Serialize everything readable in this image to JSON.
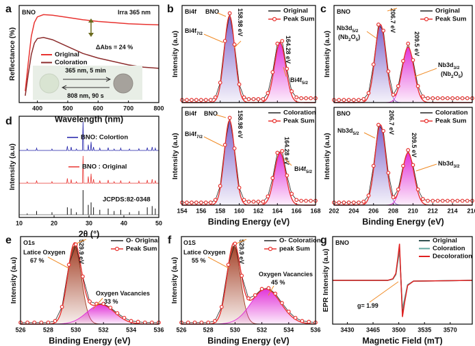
{
  "chart_data": [
    {
      "panel": "a",
      "type": "line",
      "xlabel": "Wavelength (nm)",
      "ylabel": "Reflectance (%)",
      "xlim": [
        340,
        800
      ],
      "xticks": [
        400,
        500,
        600,
        700,
        800
      ],
      "ylim": [
        0.2,
        1.05
      ],
      "annotations": [
        [
          "BNO"
        ],
        [
          "Irra 365 nm"
        ],
        [
          "ΔAbs = 24 %"
        ],
        [
          "365 nm, 5 min"
        ],
        [
          "808 nm, 90 s"
        ]
      ],
      "x": [
        360,
        370,
        380,
        390,
        400,
        420,
        450,
        500,
        550,
        600,
        650,
        700,
        750,
        800
      ],
      "series": [
        {
          "name": "Original",
          "color": "#e8322f",
          "values": [
            0.3,
            0.55,
            0.78,
            0.9,
            0.95,
            0.97,
            0.965,
            0.945,
            0.925,
            0.91,
            0.9,
            0.89,
            0.885,
            0.88
          ]
        },
        {
          "name": "Coloration",
          "color": "#8b2b2b",
          "values": [
            0.26,
            0.45,
            0.62,
            0.72,
            0.76,
            0.77,
            0.75,
            0.69,
            0.63,
            0.59,
            0.56,
            0.53,
            0.51,
            0.5
          ]
        }
      ]
    },
    {
      "panel": "b",
      "type": "xps",
      "ylabel": "Intensity (a.u)",
      "xlim": [
        154,
        168
      ],
      "xticks": [
        154,
        156,
        158,
        160,
        162,
        164,
        166,
        168
      ],
      "ylim": [
        0,
        1.12
      ],
      "annotations": [
        [
          "Bi4f"
        ],
        [
          "BNO"
        ],
        [
          "158.98 eV"
        ],
        [
          "Bi4f",
          "7/2"
        ],
        [
          "164.28 eV"
        ],
        [
          "Bi4f",
          "5/2"
        ]
      ],
      "x": [
        154,
        154.5,
        155,
        155.5,
        156,
        156.5,
        157,
        157.5,
        158,
        158.5,
        159,
        159.5,
        160,
        160.5,
        161,
        161.5,
        162,
        162.5,
        163,
        163.5,
        164,
        164.5,
        165,
        165.5,
        166,
        166.5,
        167,
        167.5,
        168
      ],
      "series": [
        {
          "name": "Original",
          "color": "#222222",
          "values": [
            0.03,
            0.03,
            0.03,
            0.03,
            0.03,
            0.03,
            0.03,
            0.06,
            0.23,
            0.71,
            1.03,
            0.67,
            0.21,
            0.06,
            0.04,
            0.04,
            0.04,
            0.04,
            0.11,
            0.35,
            0.68,
            0.71,
            0.39,
            0.13,
            0.06,
            0.05,
            0.05,
            0.05,
            0.05
          ]
        },
        {
          "name": "Peak Sum",
          "color": "#e8322f",
          "peaks": [
            {
              "center": 158.98,
              "height": 1.0,
              "width": 0.55,
              "color": "#7b5fc9"
            },
            {
              "center": 164.28,
              "height": 0.69,
              "width": 0.6,
              "color": "#e02ad6"
            }
          ]
        }
      ]
    },
    {
      "type": "xps",
      "xlabel": "Binding Energy (eV)",
      "ylabel": "Intensity (a.u)",
      "xlim": [
        154,
        168
      ],
      "xticks": [
        154,
        156,
        158,
        160,
        162,
        164,
        166,
        168
      ],
      "ylim": [
        0,
        1.12
      ],
      "annotations": [
        [
          "Bi4f"
        ],
        [
          "BNO"
        ],
        [
          "158.98 eV"
        ],
        [
          "Bi4f",
          "7/2"
        ],
        [
          "164.28 eV"
        ],
        [
          "Bi4f",
          "5/2"
        ]
      ],
      "x": [
        154,
        154.5,
        155,
        155.5,
        156,
        156.5,
        157,
        157.5,
        158,
        158.5,
        159,
        159.5,
        160,
        160.5,
        161,
        161.5,
        162,
        162.5,
        163,
        163.5,
        164,
        164.5,
        165,
        165.5,
        166,
        166.5,
        167,
        167.5,
        168
      ],
      "series": [
        {
          "name": "Coloration",
          "color": "#222222",
          "values": [
            0.03,
            0.03,
            0.03,
            0.03,
            0.03,
            0.03,
            0.03,
            0.06,
            0.22,
            0.69,
            1.0,
            0.65,
            0.2,
            0.06,
            0.04,
            0.04,
            0.04,
            0.04,
            0.1,
            0.31,
            0.6,
            0.62,
            0.34,
            0.13,
            0.06,
            0.05,
            0.05,
            0.05,
            0.05
          ]
        },
        {
          "name": "Peak Sum",
          "color": "#e8322f",
          "peaks": [
            {
              "center": 158.98,
              "height": 0.97,
              "width": 0.55,
              "color": "#7b5fc9"
            },
            {
              "center": 164.28,
              "height": 0.6,
              "width": 0.6,
              "color": "#e02ad6"
            }
          ]
        }
      ]
    },
    {
      "panel": "c",
      "type": "xps",
      "ylabel": "Intensity (a.u)",
      "xlim": [
        202,
        216
      ],
      "xticks": [
        202,
        204,
        206,
        208,
        210,
        212,
        214,
        216
      ],
      "ylim": [
        0,
        1.12
      ],
      "annotations": [
        [
          "BNO"
        ],
        [
          "206.7 eV"
        ],
        [
          "Nb3d",
          "5/2"
        ],
        [
          "(Nb",
          "2",
          "O",
          "5",
          ")"
        ],
        [
          "209.5 eV"
        ],
        [
          "Nb3d",
          "3/2"
        ],
        [
          "(Nb",
          "2",
          "O",
          "5",
          ")"
        ]
      ],
      "x": [
        202,
        202.5,
        203,
        203.5,
        204,
        204.5,
        205,
        205.5,
        206,
        206.5,
        207,
        207.5,
        208,
        208.5,
        209,
        209.5,
        210,
        210.5,
        211,
        211.5,
        212,
        212.5,
        213,
        213.5,
        214,
        214.5,
        215,
        215.5,
        216
      ],
      "series": [
        {
          "name": "Original",
          "color": "#222222",
          "values": [
            0.03,
            0.03,
            0.03,
            0.03,
            0.03,
            0.03,
            0.04,
            0.11,
            0.44,
            0.9,
            0.83,
            0.36,
            0.09,
            0.19,
            0.48,
            0.68,
            0.49,
            0.19,
            0.07,
            0.05,
            0.05,
            0.05,
            0.05,
            0.05,
            0.05,
            0.05,
            0.05,
            0.05,
            0.05
          ]
        },
        {
          "name": "Peak Sum",
          "color": "#e8322f",
          "peaks": [
            {
              "center": 206.7,
              "height": 0.9,
              "width": 0.55,
              "color": "#7b5fc9"
            },
            {
              "center": 209.5,
              "height": 0.64,
              "width": 0.6,
              "color": "#e02ad6"
            }
          ]
        }
      ]
    },
    {
      "type": "xps",
      "xlabel": "Binding Energy (eV)",
      "ylabel": "Intensity (a.u)",
      "xlim": [
        202,
        216
      ],
      "xticks": [
        202,
        204,
        206,
        208,
        210,
        212,
        214,
        216
      ],
      "ylim": [
        0,
        1.12
      ],
      "annotations": [
        [
          "BNO"
        ],
        [
          "Nb3d",
          "5/2"
        ],
        [
          "206.7 eV"
        ],
        [
          "209.5 eV"
        ],
        [
          "Nb3d",
          "3/2"
        ]
      ],
      "x": [
        202,
        202.5,
        203,
        203.5,
        204,
        204.5,
        205,
        205.5,
        206,
        206.5,
        207,
        207.5,
        208,
        208.5,
        209,
        209.5,
        210,
        210.5,
        211,
        211.5,
        212,
        212.5,
        213,
        213.5,
        214,
        214.5,
        215,
        215.5,
        216
      ],
      "series": [
        {
          "name": "Coloration",
          "color": "#222222",
          "values": [
            0.03,
            0.03,
            0.03,
            0.03,
            0.03,
            0.03,
            0.04,
            0.11,
            0.45,
            0.92,
            0.85,
            0.37,
            0.09,
            0.18,
            0.45,
            0.63,
            0.46,
            0.18,
            0.07,
            0.05,
            0.05,
            0.05,
            0.05,
            0.05,
            0.05,
            0.05,
            0.05,
            0.05,
            0.05
          ]
        },
        {
          "name": "Peak Sum",
          "color": "#e8322f",
          "peaks": [
            {
              "center": 206.7,
              "height": 0.92,
              "width": 0.55,
              "color": "#7b5fc9"
            },
            {
              "center": 209.5,
              "height": 0.6,
              "width": 0.6,
              "color": "#e02ad6"
            }
          ]
        }
      ]
    },
    {
      "panel": "d",
      "type": "xrd",
      "xlabel": "2θ (°)",
      "ylabel": "Intensity (a.u)",
      "xlim": [
        10,
        50
      ],
      "xticks": [
        10,
        20,
        30,
        40,
        50
      ],
      "x": [
        12.3,
        15.0,
        19.4,
        23.8,
        24.9,
        26.4,
        28.3,
        29.8,
        30.6,
        31.3,
        33.1,
        35.5,
        37.2,
        39.1,
        41.6,
        44.3,
        46.7,
        48.1,
        49.0
      ],
      "series": [
        {
          "name": "BNO: Colortion",
          "color": "#1f1fa8",
          "values": [
            0.05,
            0.08,
            0.05,
            0.15,
            0.12,
            0.05,
            1.0,
            0.2,
            0.3,
            0.12,
            0.08,
            0.1,
            0.05,
            0.08,
            0.05,
            0.06,
            0.1,
            0.12,
            0.08
          ]
        },
        {
          "name": "BNO : Original",
          "color": "#e8322f",
          "values": [
            0.05,
            0.1,
            0.06,
            0.18,
            0.14,
            0.06,
            1.0,
            0.25,
            0.35,
            0.15,
            0.1,
            0.12,
            0.06,
            0.1,
            0.06,
            0.08,
            0.12,
            0.15,
            0.1
          ]
        },
        {
          "name": "JCPDS:82-0348",
          "color": "#111111",
          "style": "stick",
          "values": [
            0.05,
            0.15,
            0.1,
            0.3,
            0.25,
            0.1,
            1.0,
            0.4,
            0.5,
            0.3,
            0.2,
            0.25,
            0.15,
            0.2,
            0.1,
            0.15,
            0.3,
            0.35,
            0.25
          ]
        }
      ]
    },
    {
      "panel": "e",
      "type": "xps",
      "xlabel": "Binding Energy (eV)",
      "ylabel": "Intensity (a.u)",
      "xlim": [
        526,
        536
      ],
      "xticks": [
        526,
        528,
        530,
        532,
        534,
        536
      ],
      "ylim": [
        0,
        1.12
      ],
      "annotations": [
        [
          "O1s"
        ],
        [
          "Latice Oxygen"
        ],
        [
          "67 %"
        ],
        [
          "529.9 eV"
        ],
        [
          "Oxygen Vacancies"
        ],
        [
          "33 %"
        ]
      ],
      "x": [
        526,
        526.5,
        527,
        527.5,
        528,
        528.5,
        529,
        529.5,
        530,
        530.5,
        531,
        531.5,
        532,
        532.5,
        533,
        533.5,
        534,
        534.5,
        535,
        535.5,
        536
      ],
      "series": [
        {
          "name": "O- Original",
          "color": "#222222",
          "values": [
            0.02,
            0.02,
            0.02,
            0.02,
            0.02,
            0.04,
            0.22,
            0.76,
            1.02,
            0.61,
            0.29,
            0.26,
            0.26,
            0.21,
            0.14,
            0.08,
            0.04,
            0.03,
            0.02,
            0.02,
            0.02
          ]
        },
        {
          "name": "Peak Sum",
          "color": "#e8322f",
          "peaks": [
            {
              "center": 529.9,
              "height": 1.0,
              "width": 0.5,
              "color": "#a0391e"
            },
            {
              "center": 531.8,
              "height": 0.25,
              "width": 1.0,
              "color": "#e02ad6"
            }
          ]
        }
      ]
    },
    {
      "panel": "f",
      "type": "xps",
      "xlabel": "Binding Energy (eV)",
      "ylabel": "Intensity (a.u)",
      "xlim": [
        526,
        536
      ],
      "xticks": [
        526,
        528,
        530,
        532,
        534,
        536
      ],
      "ylim": [
        0,
        1.12
      ],
      "annotations": [
        [
          "O1S"
        ],
        [
          "Latice Oxygen"
        ],
        [
          "55 %"
        ],
        [
          "529.9 eV"
        ],
        [
          "Oxygen Vacancies"
        ],
        [
          "45 %"
        ]
      ],
      "x": [
        526,
        526.5,
        527,
        527.5,
        528,
        528.5,
        529,
        529.5,
        530,
        530.5,
        531,
        531.5,
        532,
        532.5,
        533,
        533.5,
        534,
        534.5,
        535,
        535.5,
        536
      ],
      "series": [
        {
          "name": "O- Coloration",
          "color": "#222222",
          "values": [
            0.02,
            0.02,
            0.02,
            0.02,
            0.02,
            0.04,
            0.22,
            0.76,
            1.03,
            0.62,
            0.33,
            0.37,
            0.45,
            0.46,
            0.39,
            0.27,
            0.16,
            0.08,
            0.04,
            0.03,
            0.02
          ]
        },
        {
          "name": "peak Sum",
          "color": "#e8322f",
          "peaks": [
            {
              "center": 529.9,
              "height": 1.0,
              "width": 0.5,
              "color": "#a0391e"
            },
            {
              "center": 532.3,
              "height": 0.45,
              "width": 1.1,
              "color": "#e02ad6"
            }
          ]
        }
      ]
    },
    {
      "panel": "g",
      "type": "line",
      "xlabel": "Magnetic Field (mT)",
      "ylabel": "EPR Intensity (a.u)",
      "xlim": [
        3410,
        3600
      ],
      "xticks": [
        3430,
        3465,
        3500,
        3535,
        3570
      ],
      "ylim": [
        -1.1,
        1.1
      ],
      "annotations": [
        [
          "BNO"
        ],
        [
          "g= 1.99"
        ]
      ],
      "x": [
        3410,
        3485,
        3492,
        3496,
        3499,
        3501,
        3503,
        3505,
        3508,
        3512,
        3520,
        3600
      ],
      "series": [
        {
          "name": "Original",
          "color": "#2f4f4f",
          "values": [
            0,
            0,
            0.03,
            0.15,
            0.55,
            0.8,
            0,
            -0.8,
            -0.5,
            -0.12,
            -0.02,
            0
          ]
        },
        {
          "name": "Coloration",
          "color": "#5fa8a0",
          "values": [
            0,
            0,
            0.03,
            0.14,
            0.5,
            0.72,
            0,
            -0.72,
            -0.45,
            -0.11,
            -0.02,
            0
          ]
        },
        {
          "name": "Decoloration",
          "color": "#e02020",
          "values": [
            0,
            0,
            0.04,
            0.17,
            0.6,
            0.92,
            0,
            -0.92,
            -0.55,
            -0.13,
            -0.02,
            0
          ]
        }
      ]
    }
  ]
}
